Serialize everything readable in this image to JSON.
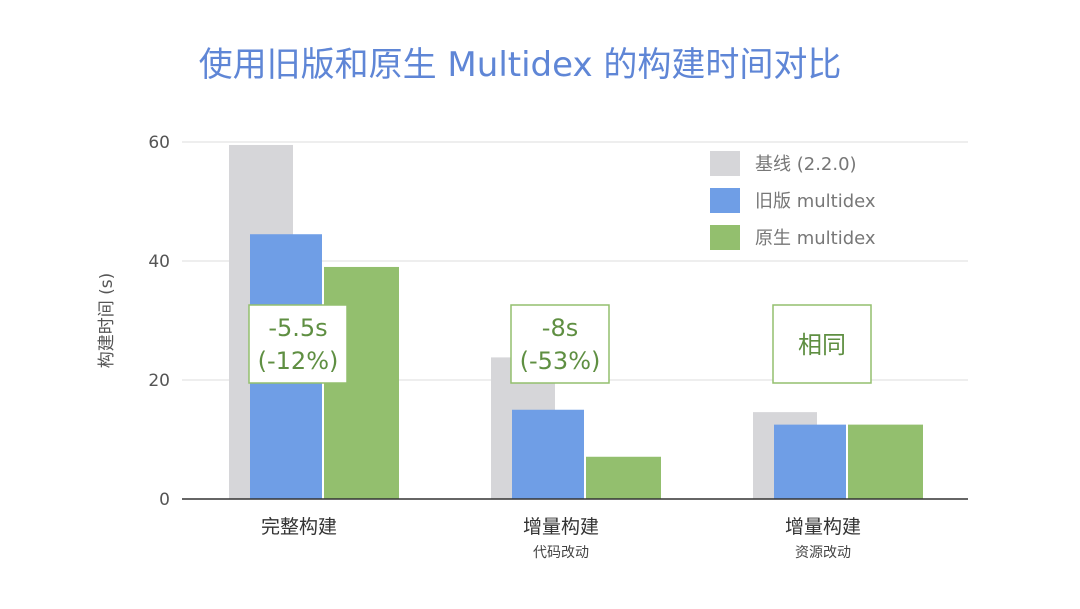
{
  "chart_data": {
    "type": "bar",
    "title": "使用旧版和原生 Multidex 的构建时间对比",
    "ylabel": "构建时间 (s)",
    "ylim": [
      0,
      60
    ],
    "yticks": [
      0,
      20,
      40,
      60
    ],
    "grid": true,
    "legend_position": "top-right",
    "categories": [
      {
        "label": "完整构建",
        "sublabel": ""
      },
      {
        "label": "增量构建",
        "sublabel": "代码改动"
      },
      {
        "label": "增量构建",
        "sublabel": "资源改动"
      }
    ],
    "series": [
      {
        "name": "基线 (2.2.0)",
        "color": "#d6d6d9",
        "values": [
          59.5,
          23.8,
          14.6
        ]
      },
      {
        "name": "旧版 multidex",
        "color": "#6f9ee6",
        "values": [
          44.5,
          15.0,
          12.5
        ]
      },
      {
        "name": "原生 multidex",
        "color": "#93bf6e",
        "values": [
          39.0,
          7.1,
          12.5
        ]
      }
    ],
    "annotations": [
      {
        "lines": [
          "-5.5s",
          "(-12%)"
        ]
      },
      {
        "lines": [
          "-8s",
          "(-53%)"
        ]
      },
      {
        "lines": [
          "相同"
        ]
      }
    ],
    "colors": {
      "title": "#5f86d6",
      "axis_text": "#555555",
      "grid": "#dddddd",
      "annotation_border": "#93bf6e",
      "annotation_text": "#5f8f42"
    }
  }
}
